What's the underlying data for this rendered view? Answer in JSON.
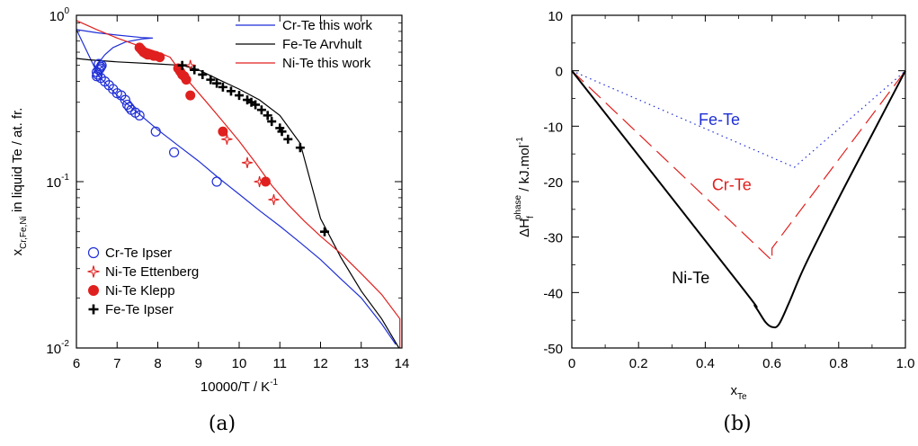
{
  "panels": [
    {
      "caption": "(a)"
    },
    {
      "caption": "(b)"
    }
  ],
  "chart_data": [
    {
      "type": "line",
      "xlabel": "10000/T / K-1",
      "xlabel_main": "10000/T / K",
      "xlabel_sup": "-1",
      "ylabel": "xCr,Fe,Ni in liquid Te / at. fr.",
      "ylabel_main": "x",
      "ylabel_sub": "Cr,Fe,Ni",
      "ylabel_rest": " in liquid Te / at. fr.",
      "xlim": [
        6,
        14
      ],
      "ylim": [
        0.01,
        1
      ],
      "yscale": "log",
      "grid": false,
      "xticks": [
        6,
        7,
        8,
        9,
        10,
        11,
        12,
        13,
        14
      ],
      "yticks": [
        {
          "value": 1,
          "base": "10",
          "exp": "0"
        },
        {
          "value": 0.1,
          "base": "10",
          "exp": "-1"
        },
        {
          "value": 0.01,
          "base": "10",
          "exp": "-2"
        }
      ],
      "legend_lines_position": "top-right",
      "legend_markers_position": "bottom-left",
      "line_series": [
        {
          "name": "Cr-Te this work",
          "color": "#1f2fd6",
          "points": [
            [
              6.55,
              0.43
            ],
            [
              6.5,
              0.46
            ],
            [
              6.55,
              0.52
            ],
            [
              6.7,
              0.58
            ],
            [
              6.9,
              0.64
            ],
            [
              7.2,
              0.69
            ],
            [
              7.6,
              0.72
            ],
            [
              7.88,
              0.73
            ],
            [
              7.6,
              0.735
            ],
            [
              7.0,
              0.76
            ],
            [
              6.5,
              0.785
            ],
            [
              6.0,
              0.82
            ],
            [
              6.55,
              0.43
            ],
            [
              7.0,
              0.33
            ],
            [
              7.5,
              0.26
            ],
            [
              8.0,
              0.205
            ],
            [
              8.5,
              0.165
            ],
            [
              9.0,
              0.133
            ],
            [
              9.5,
              0.105
            ],
            [
              10.0,
              0.084
            ],
            [
              10.5,
              0.067
            ],
            [
              11.0,
              0.054
            ],
            [
              11.5,
              0.043
            ],
            [
              12.0,
              0.034
            ],
            [
              12.5,
              0.026
            ],
            [
              13.0,
              0.02
            ],
            [
              13.5,
              0.014
            ],
            [
              13.85,
              0.0105
            ]
          ]
        },
        {
          "name": "Fe-Te Arvhult",
          "color": "#000000",
          "points": [
            [
              6.0,
              0.55
            ],
            [
              6.3,
              0.54
            ],
            [
              7.0,
              0.525
            ],
            [
              8.0,
              0.51
            ],
            [
              8.6,
              0.5
            ],
            [
              9.0,
              0.47
            ],
            [
              9.5,
              0.41
            ],
            [
              10.0,
              0.36
            ],
            [
              10.5,
              0.31
            ],
            [
              11.0,
              0.25
            ],
            [
              11.5,
              0.17
            ],
            [
              12.0,
              0.06
            ],
            [
              12.5,
              0.035
            ],
            [
              13.0,
              0.022
            ],
            [
              13.5,
              0.015
            ],
            [
              13.95,
              0.0098
            ]
          ]
        },
        {
          "name": "Ni-Te this work",
          "color": "#e0201e",
          "points": [
            [
              6.0,
              0.93
            ],
            [
              6.5,
              0.82
            ],
            [
              7.0,
              0.73
            ],
            [
              7.5,
              0.66
            ],
            [
              8.0,
              0.6
            ],
            [
              8.3,
              0.56
            ],
            [
              8.5,
              0.48
            ],
            [
              8.8,
              0.39
            ],
            [
              9.2,
              0.3
            ],
            [
              9.6,
              0.23
            ],
            [
              10.0,
              0.175
            ],
            [
              10.4,
              0.13
            ],
            [
              10.8,
              0.095
            ],
            [
              11.2,
              0.073
            ],
            [
              11.6,
              0.058
            ],
            [
              12.0,
              0.047
            ],
            [
              12.5,
              0.037
            ],
            [
              13.0,
              0.028
            ],
            [
              13.5,
              0.021
            ],
            [
              13.95,
              0.015
            ],
            [
              13.95,
              0.01
            ]
          ]
        }
      ],
      "marker_series": [
        {
          "name": "Cr-Te Ipser",
          "marker": "open-circle",
          "color": "#1f2fd6",
          "points": [
            [
              6.5,
              0.43
            ],
            [
              6.5,
              0.455
            ],
            [
              6.52,
              0.44
            ],
            [
              6.55,
              0.47
            ],
            [
              6.58,
              0.48
            ],
            [
              6.6,
              0.49
            ],
            [
              6.62,
              0.5
            ],
            [
              6.55,
              0.51
            ],
            [
              6.6,
              0.42
            ],
            [
              6.7,
              0.4
            ],
            [
              6.8,
              0.38
            ],
            [
              6.9,
              0.36
            ],
            [
              7.0,
              0.34
            ],
            [
              7.1,
              0.33
            ],
            [
              7.2,
              0.31
            ],
            [
              7.25,
              0.29
            ],
            [
              7.3,
              0.28
            ],
            [
              7.35,
              0.27
            ],
            [
              7.45,
              0.26
            ],
            [
              7.55,
              0.25
            ],
            [
              7.95,
              0.2
            ],
            [
              8.4,
              0.15
            ],
            [
              9.45,
              0.1
            ]
          ]
        },
        {
          "name": "Ni-Te Ettenberg",
          "marker": "open-star",
          "color": "#e0201e",
          "points": [
            [
              8.8,
              0.5
            ],
            [
              9.7,
              0.18
            ],
            [
              10.2,
              0.13
            ],
            [
              10.5,
              0.1
            ],
            [
              10.85,
              0.078
            ]
          ]
        },
        {
          "name": "Ni-Te Klepp",
          "marker": "filled-circle",
          "color": "#e0201e",
          "points": [
            [
              7.55,
              0.64
            ],
            [
              7.6,
              0.62
            ],
            [
              7.65,
              0.6
            ],
            [
              7.7,
              0.59
            ],
            [
              7.75,
              0.58
            ],
            [
              7.8,
              0.58
            ],
            [
              7.9,
              0.57
            ],
            [
              7.95,
              0.57
            ],
            [
              8.05,
              0.56
            ],
            [
              8.5,
              0.48
            ],
            [
              8.55,
              0.46
            ],
            [
              8.6,
              0.44
            ],
            [
              8.65,
              0.43
            ],
            [
              8.7,
              0.41
            ],
            [
              8.8,
              0.33
            ],
            [
              9.6,
              0.2
            ],
            [
              10.65,
              0.1
            ]
          ]
        },
        {
          "name": "Fe-Te Ipser",
          "marker": "plus",
          "color": "#000000",
          "points": [
            [
              8.6,
              0.5
            ],
            [
              8.9,
              0.47
            ],
            [
              9.1,
              0.44
            ],
            [
              9.3,
              0.41
            ],
            [
              9.45,
              0.39
            ],
            [
              9.6,
              0.37
            ],
            [
              9.8,
              0.35
            ],
            [
              10.0,
              0.33
            ],
            [
              10.2,
              0.31
            ],
            [
              10.3,
              0.3
            ],
            [
              10.4,
              0.29
            ],
            [
              10.55,
              0.27
            ],
            [
              10.7,
              0.25
            ],
            [
              10.8,
              0.23
            ],
            [
              11.0,
              0.21
            ],
            [
              11.05,
              0.2
            ],
            [
              11.2,
              0.18
            ],
            [
              11.5,
              0.16
            ],
            [
              12.1,
              0.05
            ]
          ]
        }
      ]
    },
    {
      "type": "line",
      "xlabel": "xTe",
      "xlabel_main": "x",
      "xlabel_sub": "Te",
      "ylabel": "ΔHf phase / kJ.mol-1",
      "ylabel_main": "ΔH",
      "ylabel_sub": "f",
      "ylabel_sup": "phase",
      "ylabel_rest": " / kJ.mol",
      "ylabel_unit_sup": "-1",
      "xlim": [
        0,
        1
      ],
      "ylim": [
        -50,
        10
      ],
      "grid": false,
      "xticks": [
        "0",
        "0.2",
        "0.4",
        "0.6",
        "0.8",
        "1.0"
      ],
      "xtick_values": [
        0,
        0.2,
        0.4,
        0.6,
        0.8,
        1.0
      ],
      "yticks": [
        "10",
        "0",
        "-10",
        "-20",
        "-30",
        "-40",
        "-50"
      ],
      "ytick_values": [
        10,
        0,
        -10,
        -20,
        -30,
        -40,
        -50
      ],
      "series": [
        {
          "name": "Fe-Te",
          "color": "#1f2fd6",
          "style": "dotted",
          "x": [
            0,
            0.667,
            1.0
          ],
          "y": [
            0,
            -17.4,
            0
          ],
          "label_at": [
            0.38,
            -9.8
          ]
        },
        {
          "name": "Cr-Te",
          "color": "#e0201e",
          "style": "dashed",
          "x": [
            0,
            0.6,
            0.6,
            1.0
          ],
          "y": [
            0,
            -34.2,
            -32,
            0
          ],
          "label_at": [
            0.42,
            -21.5
          ]
        },
        {
          "name": "Ni-Te",
          "color": "#000000",
          "style": "solid",
          "x": [
            0,
            0.5,
            0.55,
            0.58,
            0.6,
            0.62,
            0.65,
            0.7,
            0.8,
            0.9,
            1.0
          ],
          "y": [
            0,
            -38.3,
            -42.5,
            -45.3,
            -46.2,
            -45.8,
            -42.0,
            -35.0,
            -23.0,
            -11.5,
            0
          ],
          "label_at": [
            0.3,
            -38.3
          ]
        }
      ]
    }
  ]
}
